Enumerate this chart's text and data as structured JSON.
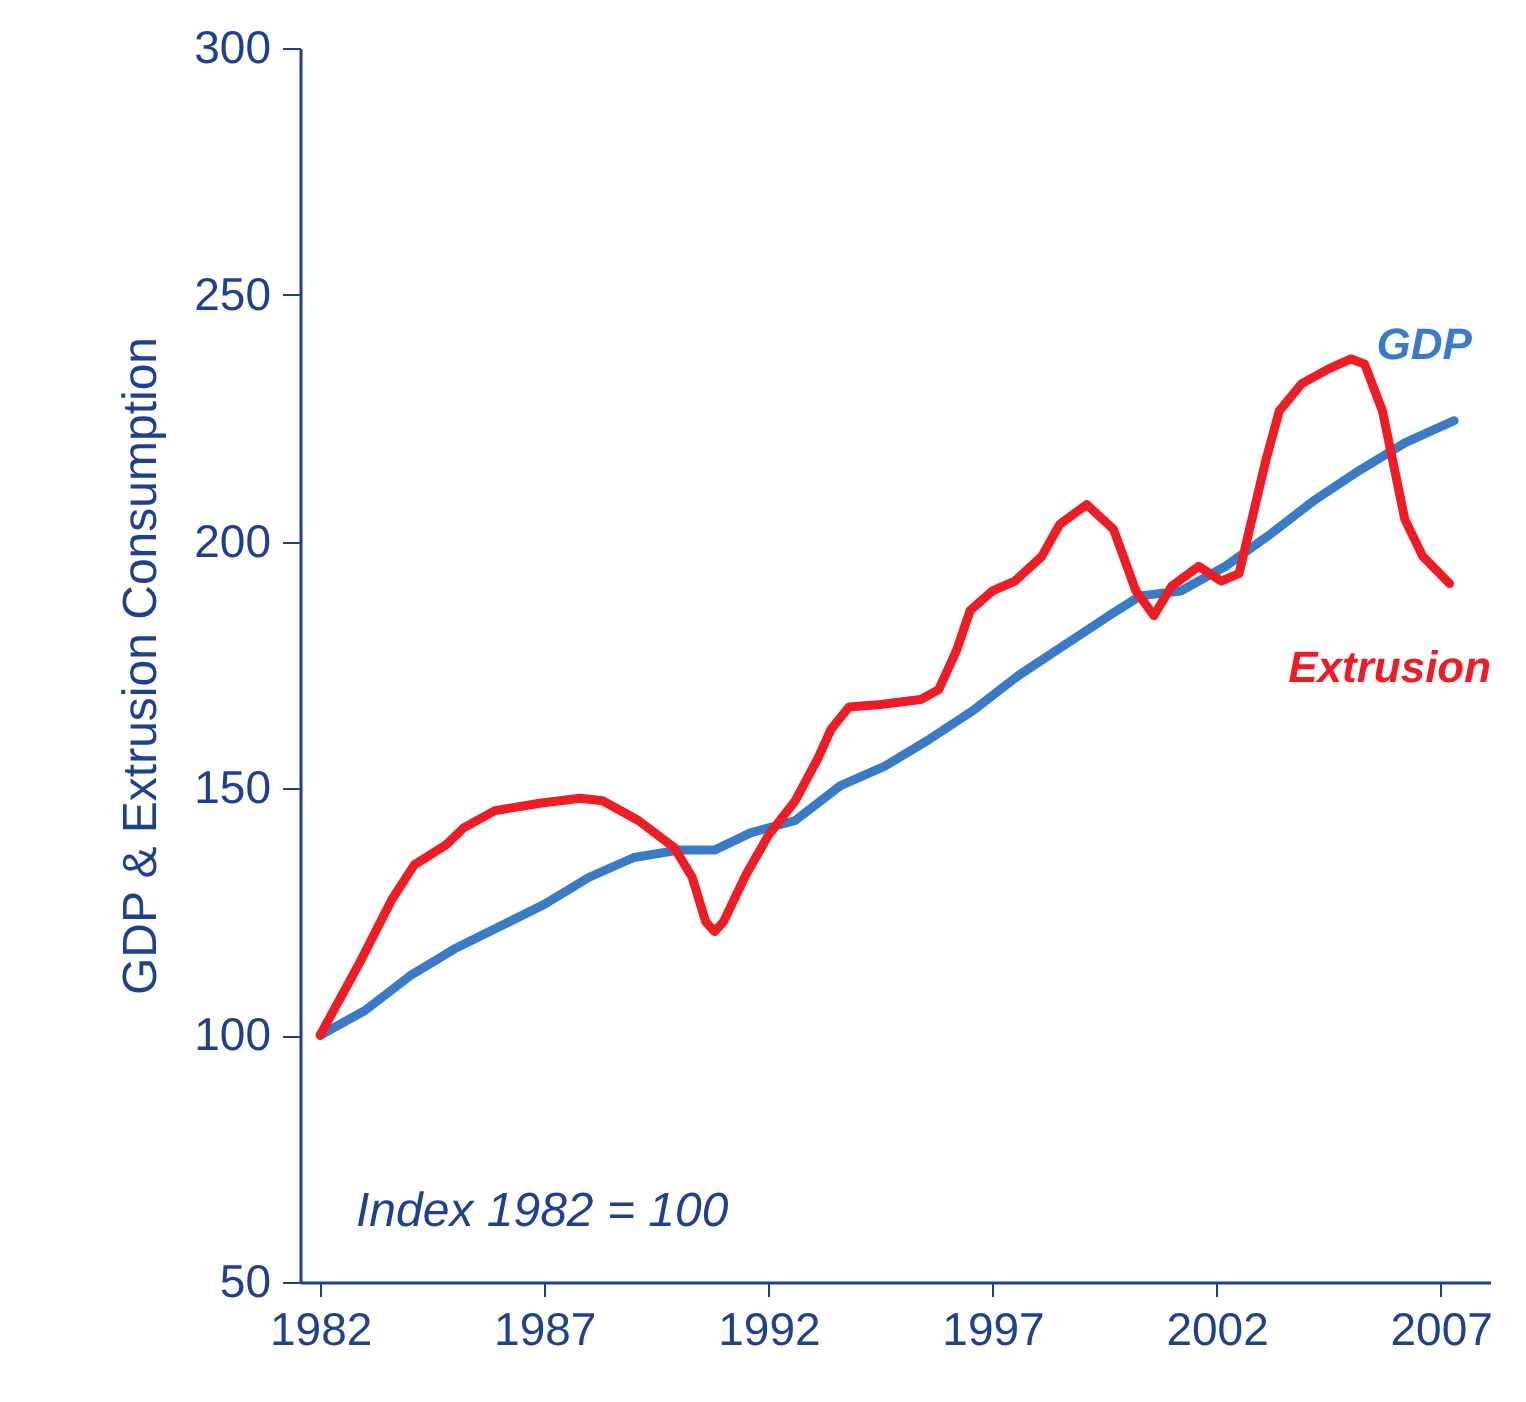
{
  "chart_data": {
    "type": "line",
    "ylabel": "GDP & Extrusion Consumption",
    "xlim": [
      1981.55,
      2008.1
    ],
    "xticks": [
      1982,
      1987,
      1992,
      1997,
      2002,
      2007
    ],
    "ylim": [
      50,
      300
    ],
    "yticks": [
      50,
      100,
      150,
      200,
      250,
      300
    ],
    "grid": false,
    "legend": false,
    "marker": "none",
    "line_style": "solid",
    "annotations": [
      "Index 1982 = 100"
    ],
    "series": [
      {
        "name": "GDP",
        "color": "#3a7bc8",
        "x": [
          1982,
          1983,
          1984,
          1985,
          1986,
          1987,
          1988,
          1989,
          1990,
          1990.8,
          1991.6,
          1992.6,
          1993.6,
          1994.6,
          1995.6,
          1996.6,
          1997.6,
          1998.6,
          1999.6,
          2000.3,
          2001.2,
          2002.2,
          2003.2,
          2004.2,
          2005.2,
          2006.2,
          2007.3
        ],
        "values": [
          100,
          105,
          112,
          117.5,
          122,
          126.5,
          132,
          136,
          137.5,
          137.5,
          141,
          143.5,
          150.5,
          154.5,
          160,
          166,
          173,
          179,
          185,
          189,
          190,
          195,
          201.5,
          208.5,
          214.5,
          220,
          224.5
        ]
      },
      {
        "name": "Extrusion",
        "color": "#ee1c25",
        "x": [
          1982,
          1982.9,
          1983.6,
          1984.1,
          1984.8,
          1985.2,
          1985.9,
          1986.9,
          1987.8,
          1988.3,
          1989.1,
          1989.9,
          1990.3,
          1990.6,
          1990.8,
          1991,
          1991.5,
          1992,
          1992.6,
          1993.1,
          1993.4,
          1993.8,
          1994.5,
          1995.4,
          1995.8,
          1996.2,
          1996.5,
          1997,
          1997.5,
          1998.1,
          1998.5,
          1999.1,
          1999.7,
          2000.2,
          2000.6,
          2001,
          2001.6,
          2002.1,
          2002.5,
          2003.1,
          2003.4,
          2003.9,
          2004.5,
          2005,
          2005.3,
          2005.7,
          2006.2,
          2006.6,
          2007.2
        ],
        "values": [
          100,
          115,
          127.5,
          134.5,
          138.5,
          142,
          145.5,
          147,
          148,
          147.5,
          143.5,
          138,
          132,
          123,
          121,
          123,
          132.5,
          140.5,
          147.5,
          156,
          162,
          166.5,
          167,
          168,
          170,
          178,
          186,
          190,
          192,
          197,
          203.5,
          207.5,
          202.5,
          190,
          185,
          191,
          195,
          192,
          193.5,
          216.5,
          226.5,
          232,
          235,
          237,
          236,
          226.5,
          204.5,
          197,
          191.5
        ]
      }
    ]
  }
}
